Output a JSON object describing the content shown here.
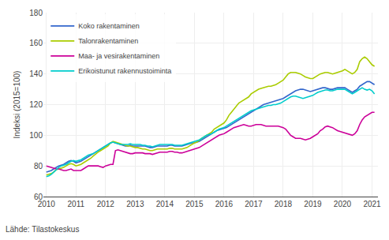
{
  "chart_data": {
    "type": "line",
    "ylabel": "Indeksi (2015=100)",
    "annotations": [
      "Lähde: Tilastokeskus"
    ],
    "xlim": [
      2009.9,
      2021.2
    ],
    "xticks": [
      2010,
      2011,
      2012,
      2013,
      2014,
      2015,
      2016,
      2017,
      2018,
      2019,
      2020,
      2021
    ],
    "ylim": [
      60,
      180
    ],
    "yticks": [
      60,
      80,
      100,
      120,
      140,
      160,
      180
    ],
    "grid": true,
    "legend": "upper left",
    "x": [
      2010.0,
      2010.083,
      2010.167,
      2010.25,
      2010.333,
      2010.417,
      2010.5,
      2010.583,
      2010.667,
      2010.75,
      2010.833,
      2010.917,
      2011.0,
      2011.083,
      2011.167,
      2011.25,
      2011.333,
      2011.417,
      2011.5,
      2011.583,
      2011.667,
      2011.75,
      2011.833,
      2011.917,
      2012.0,
      2012.083,
      2012.167,
      2012.25,
      2012.333,
      2012.417,
      2012.5,
      2012.583,
      2012.667,
      2012.75,
      2012.833,
      2012.917,
      2013.0,
      2013.083,
      2013.167,
      2013.25,
      2013.333,
      2013.417,
      2013.5,
      2013.583,
      2013.667,
      2013.75,
      2013.833,
      2013.917,
      2014.0,
      2014.083,
      2014.167,
      2014.25,
      2014.333,
      2014.417,
      2014.5,
      2014.583,
      2014.667,
      2014.75,
      2014.833,
      2014.917,
      2015.0,
      2015.083,
      2015.167,
      2015.25,
      2015.333,
      2015.417,
      2015.5,
      2015.583,
      2015.667,
      2015.75,
      2015.833,
      2015.917,
      2016.0,
      2016.083,
      2016.167,
      2016.25,
      2016.333,
      2016.417,
      2016.5,
      2016.583,
      2016.667,
      2016.75,
      2016.833,
      2016.917,
      2017.0,
      2017.083,
      2017.167,
      2017.25,
      2017.333,
      2017.417,
      2017.5,
      2017.583,
      2017.667,
      2017.75,
      2017.833,
      2017.917,
      2018.0,
      2018.083,
      2018.167,
      2018.25,
      2018.333,
      2018.417,
      2018.5,
      2018.583,
      2018.667,
      2018.75,
      2018.833,
      2018.917,
      2019.0,
      2019.083,
      2019.167,
      2019.25,
      2019.333,
      2019.417,
      2019.5,
      2019.583,
      2019.667,
      2019.75,
      2019.833,
      2019.917,
      2020.0,
      2020.083,
      2020.167,
      2020.25,
      2020.333,
      2020.417,
      2020.5,
      2020.583,
      2020.667,
      2020.75,
      2020.833,
      2020.917,
      2021.0,
      2021.083
    ],
    "series": [
      {
        "name": "Koko rakentaminen",
        "color": "#3366cc",
        "values": [
          76,
          76.5,
          77,
          78,
          79,
          80,
          80.5,
          81,
          82,
          83,
          83.5,
          83,
          82,
          82.5,
          83,
          84,
          85,
          86,
          87,
          88,
          89,
          90,
          91,
          92,
          93,
          94,
          95,
          95.5,
          95,
          94.5,
          94,
          93.5,
          93,
          93,
          93.5,
          93,
          93,
          93,
          93,
          93,
          93,
          92.5,
          92,
          92,
          92.5,
          93,
          93,
          93,
          93,
          93,
          93.5,
          93.5,
          93,
          93,
          93,
          93,
          93.5,
          94,
          94.5,
          95,
          95,
          95.5,
          96,
          97,
          98,
          99,
          100,
          101,
          102,
          103,
          103.5,
          104,
          104.5,
          105,
          106,
          107,
          108,
          109,
          110,
          111,
          112,
          113,
          114,
          115,
          116,
          117,
          118,
          119,
          120,
          120.5,
          121,
          121.5,
          122,
          122.5,
          123,
          123.5,
          124,
          125,
          126,
          127,
          128,
          129,
          129.5,
          130,
          130,
          129.5,
          129,
          128.5,
          129,
          129.5,
          130,
          130.5,
          131,
          131,
          130.5,
          130,
          130,
          130.5,
          131,
          131,
          131,
          131,
          130,
          129,
          128,
          129,
          130,
          132,
          133,
          134,
          135,
          135,
          134,
          133
        ]
      },
      {
        "name": "Talonrakentaminen",
        "color": "#aacc00",
        "values": [
          74,
          74.5,
          75,
          76,
          77.5,
          78,
          78.5,
          79,
          80,
          81,
          81.5,
          81,
          80,
          80.5,
          81,
          82,
          83,
          84,
          85,
          86.5,
          88,
          89,
          90,
          91,
          92,
          93,
          95,
          96,
          95.5,
          95,
          94.5,
          94,
          93.5,
          93,
          93,
          92.5,
          92,
          92,
          91.5,
          91,
          91,
          90.5,
          90,
          90,
          90.5,
          91,
          91,
          91,
          91,
          91,
          91.5,
          91.5,
          91,
          91,
          91,
          91,
          91.5,
          92,
          93,
          94,
          95,
          95.5,
          97,
          98,
          99,
          100,
          101,
          102,
          104,
          105,
          106,
          107,
          108,
          110,
          113,
          115,
          117,
          119,
          121,
          122,
          123,
          124,
          125,
          127,
          128,
          129,
          130,
          130.5,
          131,
          131.5,
          132,
          132,
          132.5,
          133,
          134,
          135,
          136,
          138,
          140,
          141,
          141,
          141,
          140.5,
          140,
          139,
          138,
          137.5,
          137,
          137,
          138,
          139,
          140,
          140.5,
          141,
          141,
          140.5,
          140,
          140.5,
          141,
          141.5,
          142,
          143,
          142,
          141,
          140,
          141,
          143,
          148,
          150,
          151,
          150,
          148,
          146,
          145
        ]
      },
      {
        "name": "Maa- ja vesirakentaminen",
        "color": "#cc0099",
        "values": [
          80,
          79.5,
          79,
          78.5,
          78,
          78,
          77.5,
          77,
          77,
          77.5,
          78,
          77,
          77,
          77,
          77,
          78,
          79,
          80,
          80,
          80,
          80,
          80,
          79.5,
          79,
          80,
          80.5,
          81,
          81,
          90,
          90.5,
          90,
          89.5,
          89,
          88.5,
          88,
          88,
          88.5,
          88.5,
          88.5,
          88.5,
          88,
          88,
          88,
          87.5,
          88,
          88.5,
          89,
          89,
          89,
          89,
          89.5,
          89.5,
          89,
          89,
          88.5,
          88.5,
          89,
          89.5,
          90,
          90.5,
          91,
          91.5,
          92,
          93,
          94,
          95,
          96,
          97,
          98,
          99,
          100,
          100.5,
          101,
          102,
          103,
          104,
          105,
          105.5,
          106,
          106.5,
          107,
          106.5,
          106,
          106,
          106.5,
          107,
          107,
          107,
          106.5,
          106,
          106,
          106,
          106,
          106,
          106,
          105.5,
          105,
          104,
          102,
          100,
          99,
          98,
          98,
          98,
          97.5,
          97,
          97.5,
          98,
          99,
          100,
          101,
          103,
          104,
          105.5,
          106,
          105.5,
          105,
          104,
          103,
          102.5,
          102,
          101.5,
          101,
          100.5,
          100,
          101,
          103,
          107,
          110,
          112,
          113,
          114,
          115,
          115
        ]
      },
      {
        "name": "Erikoistunut rakennustoiminta",
        "color": "#00cccc",
        "values": [
          73,
          73.5,
          74.5,
          76,
          77.5,
          79,
          80,
          80.5,
          81,
          82,
          83,
          83.5,
          83,
          83.5,
          84,
          85,
          86,
          87,
          87.5,
          88,
          89,
          90,
          91,
          92,
          93,
          94,
          95,
          95.5,
          95,
          94.5,
          94,
          94,
          94,
          94,
          94.5,
          94,
          94,
          94,
          94,
          93.5,
          93.5,
          93,
          93,
          92.5,
          93,
          93.5,
          94,
          94,
          94,
          94,
          94,
          94,
          93.5,
          93.5,
          93.5,
          93.5,
          94,
          94.5,
          95,
          95.5,
          96,
          96.5,
          97,
          98,
          99,
          100,
          100.5,
          101,
          102,
          103,
          104,
          104.5,
          105,
          106,
          107,
          108,
          109,
          110,
          111,
          112,
          113,
          114,
          115,
          116,
          116.5,
          117,
          117.5,
          118,
          118.5,
          119,
          119.5,
          119.5,
          120,
          120,
          120.5,
          121,
          122,
          123,
          124,
          125,
          125.5,
          125.5,
          125,
          124.5,
          124,
          124.5,
          125,
          125.5,
          126,
          127,
          128,
          128.5,
          129,
          129.5,
          129.5,
          129,
          129,
          129.5,
          130,
          130,
          130,
          130,
          129,
          128,
          127,
          128,
          129,
          130,
          131,
          130,
          129.5,
          130,
          129,
          127
        ]
      }
    ]
  }
}
